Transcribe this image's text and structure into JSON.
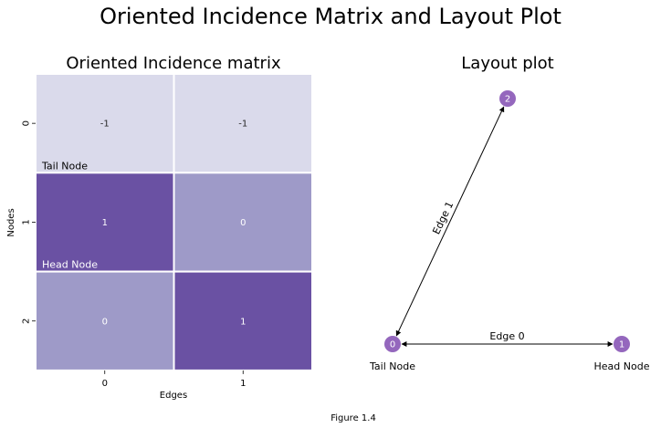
{
  "figure": {
    "suptitle": "Oriented Incidence Matrix and Layout Plot",
    "caption": "Figure 1.4"
  },
  "chart_data": [
    {
      "type": "heatmap",
      "title": "Oriented Incidence matrix",
      "xlabel": "Edges",
      "ylabel": "Nodes",
      "x_ticks": [
        "0",
        "1"
      ],
      "y_ticks": [
        "0",
        "1",
        "2"
      ],
      "values": [
        [
          -1,
          -1
        ],
        [
          1,
          0
        ],
        [
          0,
          1
        ]
      ],
      "colors": {
        "-1": "#dadaeb",
        "0": "#9e9ac8",
        "1": "#6a51a3"
      },
      "annotations": [
        {
          "row": 0,
          "text": "Tail Node"
        },
        {
          "row": 1,
          "text": "Head Node"
        }
      ]
    },
    {
      "type": "network",
      "title": "Layout plot",
      "node_color": "#9467bd",
      "nodes": [
        {
          "id": "0",
          "label": "Tail Node"
        },
        {
          "id": "1",
          "label": "Head Node"
        },
        {
          "id": "2",
          "label": ""
        }
      ],
      "edges": [
        {
          "source": "0",
          "target": "1",
          "label": "Edge 0",
          "directed": "both"
        },
        {
          "source": "0",
          "target": "2",
          "label": "Edge 1",
          "directed": "both"
        }
      ]
    }
  ]
}
